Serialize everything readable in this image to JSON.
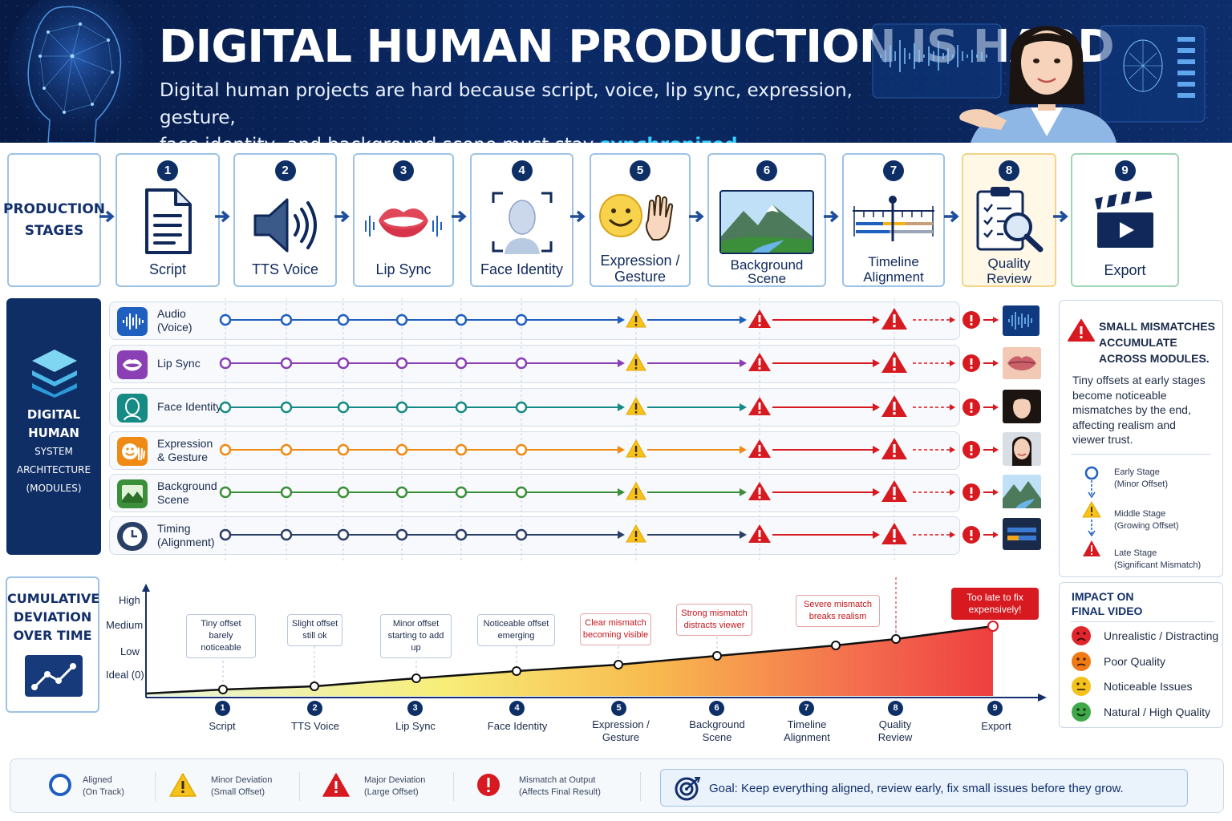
{
  "header": {
    "title": "DIGITAL HUMAN PRODUCTION IS HARD",
    "subtitle_line1": "Digital human projects are hard because script, voice, lip sync, expression, gesture,",
    "subtitle_line2_pre": "face identity, and background scene must stay ",
    "subtitle_line2_hl": "synchronized",
    "subtitle_line2_post": ".",
    "accent_color": "#38d0ff"
  },
  "stages": {
    "label_line1": "PRODUCTION",
    "label_line2": "STAGES",
    "items": [
      {
        "num": "1",
        "line1": "Script",
        "line2": "",
        "icon": "document-icon"
      },
      {
        "num": "2",
        "line1": "TTS Voice",
        "line2": "",
        "icon": "speaker-icon"
      },
      {
        "num": "3",
        "line1": "Lip Sync",
        "line2": "",
        "icon": "lips-icon"
      },
      {
        "num": "4",
        "line1": "Face Identity",
        "line2": "",
        "icon": "face-scan-icon"
      },
      {
        "num": "5",
        "line1": "Expression /",
        "line2": "Gesture",
        "icon": "smiley-hand-icon"
      },
      {
        "num": "6",
        "line1": "Background",
        "line2": "Scene",
        "icon": "landscape-icon"
      },
      {
        "num": "7",
        "line1": "Timeline",
        "line2": "Alignment",
        "icon": "timeline-icon"
      },
      {
        "num": "8",
        "line1": "Quality",
        "line2": "Review",
        "icon": "clipboard-magnifier-icon"
      },
      {
        "num": "9",
        "line1": "Export",
        "line2": "",
        "icon": "clapperboard-icon"
      }
    ]
  },
  "modules": {
    "panel_line1": "DIGITAL HUMAN",
    "panel_line2": "SYSTEM ARCHITECTURE",
    "panel_line3": "(MODULES)",
    "rows": [
      {
        "line1": "Audio",
        "line2": "(Voice)",
        "color": "#1f5fbf",
        "icon": "waveform-icon"
      },
      {
        "line1": "Lip Sync",
        "line2": "",
        "color": "#8a3fb5",
        "icon": "lips-icon"
      },
      {
        "line1": "Face Identity",
        "line2": "",
        "color": "#168a84",
        "icon": "face-icon"
      },
      {
        "line1": "Expression",
        "line2": "& Gesture",
        "color": "#ef8a14",
        "icon": "smiley-icon"
      },
      {
        "line1": "Background",
        "line2": "Scene",
        "color": "#3c8f3a",
        "icon": "landscape-icon"
      },
      {
        "line1": "Timing",
        "line2": "(Alignment)",
        "color": "#2a3f66",
        "icon": "clock-icon"
      }
    ]
  },
  "side_panel": {
    "heading_line1": "SMALL MISMATCHES",
    "heading_line2": "ACCUMULATE",
    "heading_line3": "ACROSS MODULES.",
    "body_line1": "Tiny offsets at early stages",
    "body_line2": "become noticeable",
    "body_line3": "mismatches by the end,",
    "body_line4": "affecting realism and",
    "body_line5": "viewer trust.",
    "legend": [
      {
        "line1": "Early Stage",
        "line2": "(Minor Offset)",
        "icon": "circle-icon"
      },
      {
        "line1": "Middle Stage",
        "line2": "(Growing Offset)",
        "icon": "warning-yellow-icon"
      },
      {
        "line1": "Late Stage",
        "line2": "(Significant Mismatch)",
        "icon": "warning-red-icon"
      }
    ]
  },
  "impact": {
    "heading_line1": "IMPACT ON",
    "heading_line2": "FINAL VIDEO",
    "items": [
      {
        "label": "Unrealistic / Distracting",
        "color": "#e0262b"
      },
      {
        "label": "Poor Quality",
        "color": "#f07a16"
      },
      {
        "label": "Noticeable Issues",
        "color": "#f4c21c"
      },
      {
        "label": "Natural / High Quality",
        "color": "#3fa84a"
      }
    ]
  },
  "cumulative": {
    "label_line1": "CUMULATIVE",
    "label_line2": "DEVIATION",
    "label_line3": "OVER TIME",
    "y_labels": [
      {
        "text": "High",
        "color": "#d71920"
      },
      {
        "text": "Medium",
        "color": "#e08a00"
      },
      {
        "text": "Low",
        "color": "#3c8f3a"
      },
      {
        "text": "Ideal (0)",
        "color": "#13306b"
      }
    ],
    "callouts": [
      {
        "line1": "Tiny offset",
        "line2": "barely noticeable"
      },
      {
        "line1": "Slight offset",
        "line2": "still ok"
      },
      {
        "line1": "Minor offset",
        "line2": "starting to add up"
      },
      {
        "line1": "Noticeable offset",
        "line2": "emerging"
      },
      {
        "line1": "Clear mismatch",
        "line2": "becoming visible"
      },
      {
        "line1": "Strong mismatch",
        "line2": "distracts viewer"
      },
      {
        "line1": "Severe mismatch",
        "line2": "breaks realism"
      },
      {
        "line1": "Too late to fix",
        "line2": "expensively!"
      }
    ],
    "x_labels": [
      {
        "num": "1",
        "line1": "Script",
        "line2": ""
      },
      {
        "num": "2",
        "line1": "TTS Voice",
        "line2": ""
      },
      {
        "num": "3",
        "line1": "Lip Sync",
        "line2": ""
      },
      {
        "num": "4",
        "line1": "Face Identity",
        "line2": ""
      },
      {
        "num": "5",
        "line1": "Expression /",
        "line2": "Gesture"
      },
      {
        "num": "6",
        "line1": "Background",
        "line2": "Scene"
      },
      {
        "num": "7",
        "line1": "Timeline",
        "line2": "Alignment"
      },
      {
        "num": "8",
        "line1": "Quality",
        "line2": "Review"
      },
      {
        "num": "9",
        "line1": "Export",
        "line2": ""
      }
    ]
  },
  "legend": {
    "items": [
      {
        "line1": "Aligned",
        "line2": "(On Track)",
        "icon": "circle-icon"
      },
      {
        "line1": "Minor Deviation",
        "line2": "(Small Offset)",
        "icon": "warning-yellow-icon"
      },
      {
        "line1": "Major Deviation",
        "line2": "(Large Offset)",
        "icon": "warning-red-icon"
      },
      {
        "line1": "Mismatch at Output",
        "line2": "(Affects Final Result)",
        "icon": "error-circle-icon"
      }
    ],
    "goal_label": "Goal:",
    "goal_text": "Keep everything aligned, review early, fix small issues before they grow."
  }
}
